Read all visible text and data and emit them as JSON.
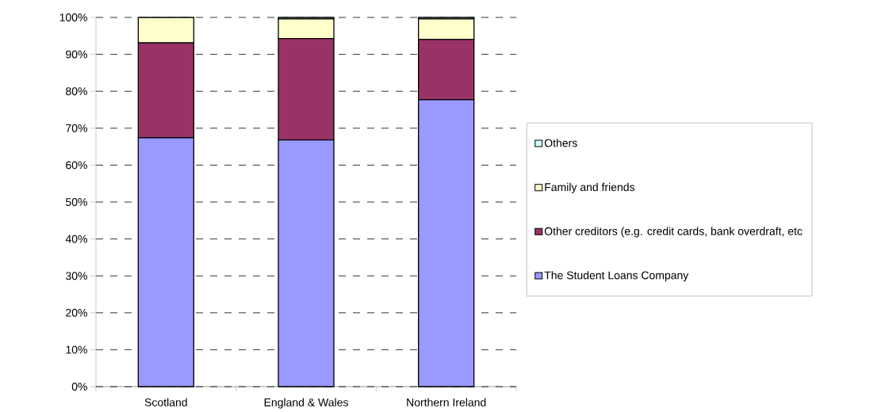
{
  "chart_data": {
    "type": "bar",
    "stacked": true,
    "categories": [
      "Scotland",
      "England & Wales",
      "Northern Ireland"
    ],
    "series": [
      {
        "name": "The Student Loans Company",
        "color": "#9999ff",
        "values": [
          67.4,
          66.8,
          77.7
        ]
      },
      {
        "name": "Other creditors (e.g. credit cards, bank overdraft, etc",
        "color": "#993366",
        "values": [
          25.7,
          27.5,
          16.3
        ]
      },
      {
        "name": "Family and friends",
        "color": "#ffffcc",
        "values": [
          6.9,
          5.3,
          5.6
        ]
      },
      {
        "name": "Others",
        "color": "#ccffff",
        "values": [
          0,
          0.4,
          0.4
        ]
      }
    ],
    "ylim": [
      0,
      100
    ],
    "yticks": [
      {
        "value": 0,
        "label": "0%"
      },
      {
        "value": 10,
        "label": "10%"
      },
      {
        "value": 20,
        "label": "20%"
      },
      {
        "value": 30,
        "label": "30%"
      },
      {
        "value": 40,
        "label": "40%"
      },
      {
        "value": 50,
        "label": "50%"
      },
      {
        "value": 60,
        "label": "60%"
      },
      {
        "value": 70,
        "label": "70%"
      },
      {
        "value": 80,
        "label": "80%"
      },
      {
        "value": 90,
        "label": "90%"
      },
      {
        "value": 100,
        "label": "100%"
      }
    ],
    "grid": "y",
    "legend": "right"
  }
}
